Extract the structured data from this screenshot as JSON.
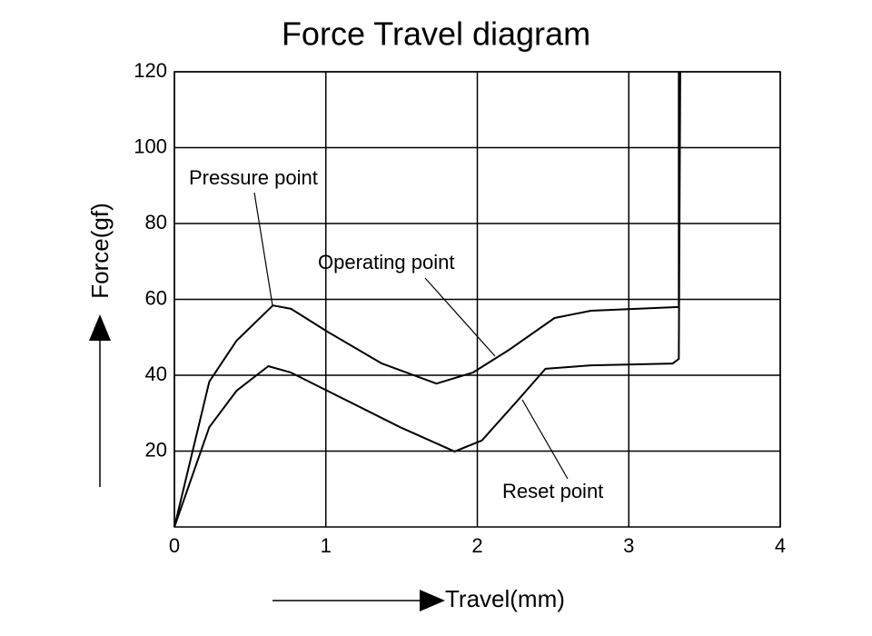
{
  "chart_data": {
    "type": "line",
    "title": "Force Travel diagram",
    "x_label": "Travel(mm)",
    "y_label": "Force(gf)",
    "xlim": [
      0,
      4
    ],
    "xticks": [
      0,
      1,
      2,
      3,
      4
    ],
    "ylim": [
      0,
      120
    ],
    "yticks": [
      20,
      40,
      60,
      80,
      100,
      120
    ],
    "grid": true,
    "series": [
      {
        "color": "#000000",
        "x": [
          0,
          0.23,
          0.41,
          0.65,
          0.77,
          1.01,
          1.37,
          1.73,
          1.97,
          2.21,
          2.51,
          2.75,
          3.05,
          3.33,
          3.33
        ],
        "values": [
          0,
          38.3,
          49.1,
          58.4,
          57.5,
          51.5,
          43.1,
          37.8,
          40.7,
          46.7,
          55.1,
          57.0,
          57.5,
          58.0,
          120
        ]
      },
      {
        "color": "#000000",
        "x": [
          0,
          0.23,
          0.41,
          0.62,
          0.77,
          1.13,
          1.49,
          1.85,
          2.03,
          2.27,
          2.45,
          2.75,
          3.29,
          3.33,
          3.34
        ],
        "values": [
          0,
          26.3,
          35.9,
          42.4,
          40.7,
          33.5,
          26.3,
          19.9,
          22.8,
          33.5,
          41.7,
          42.6,
          43.1,
          44.3,
          120
        ]
      }
    ],
    "annotations": [
      "Pressure point",
      "Operating point",
      "Reset point"
    ]
  }
}
